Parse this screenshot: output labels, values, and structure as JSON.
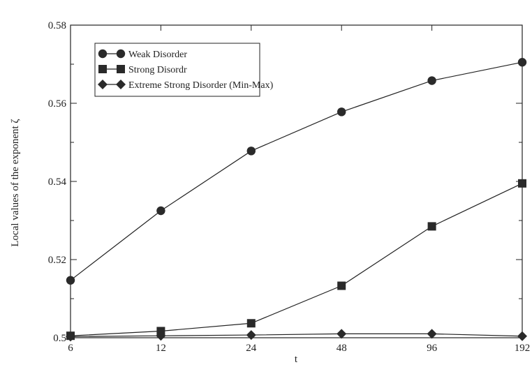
{
  "chart_data": {
    "type": "line",
    "title": "",
    "xlabel": "t",
    "ylabel": "Local values of the exponent ζ",
    "x": [
      6,
      12,
      24,
      48,
      96,
      192
    ],
    "x_tick_labels": [
      "6",
      "12",
      "24",
      "48",
      "96",
      "192"
    ],
    "x_scale": "log2",
    "ylim": [
      0.5,
      0.58
    ],
    "y_ticks": [
      0.5,
      0.52,
      0.54,
      0.56,
      0.58
    ],
    "y_tick_labels": [
      "0.5",
      "0.52",
      "0.54",
      "0.56",
      "0.58"
    ],
    "grid": false,
    "legend_position": "top-left",
    "series": [
      {
        "name": "Weak Disorder",
        "marker": "circle",
        "values": [
          0.5147,
          0.5325,
          0.5478,
          0.5578,
          0.5658,
          0.5705
        ]
      },
      {
        "name": "Strong Disordr",
        "marker": "square",
        "values": [
          0.5005,
          0.5017,
          0.5037,
          0.5133,
          0.5285,
          0.5395
        ]
      },
      {
        "name": "Extreme Strong Disorder (Min-Max)",
        "marker": "diamond",
        "values": [
          0.5003,
          0.5005,
          0.5007,
          0.501,
          0.501,
          0.5004
        ]
      }
    ],
    "colors": {
      "line": "#222222",
      "marker": "#2a2a2a"
    }
  }
}
